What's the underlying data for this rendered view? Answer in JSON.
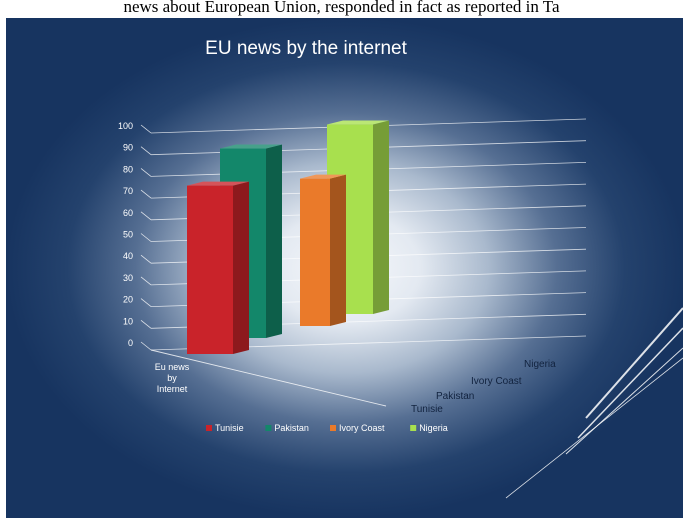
{
  "document": {
    "caption": "news about European Union, responded in fact as reported in Ta"
  },
  "chart_data": {
    "type": "bar",
    "title": "EU news by the internet",
    "categories": [
      "Eu news by Internet"
    ],
    "category_label_lines": [
      "Eu news",
      "by",
      "Internet"
    ],
    "series": [
      {
        "name": "Tunisie",
        "values": [
          80
        ]
      },
      {
        "name": "Pakistan",
        "values": [
          90
        ]
      },
      {
        "name": "Ivory Coast",
        "values": [
          70
        ]
      },
      {
        "name": "Nigeria",
        "values": [
          90
        ]
      }
    ],
    "depth_labels": [
      "Tunisie",
      "Pakistan",
      "Ivory Coast",
      "Nigeria"
    ],
    "legend_labels": [
      "Tunisie",
      "Pakistan",
      "Ivory Coast",
      "Nigeria"
    ],
    "y_ticks": [
      0,
      10,
      20,
      30,
      40,
      50,
      60,
      70,
      80,
      90,
      100
    ],
    "ylim": [
      0,
      100
    ],
    "grid": true,
    "legend_position": "bottom",
    "colors": {
      "Tunisie": "#c9232a",
      "Pakistan": "#13876a",
      "Ivory Coast": "#ea7a2a",
      "Nigeria": "#a8e04e"
    }
  }
}
